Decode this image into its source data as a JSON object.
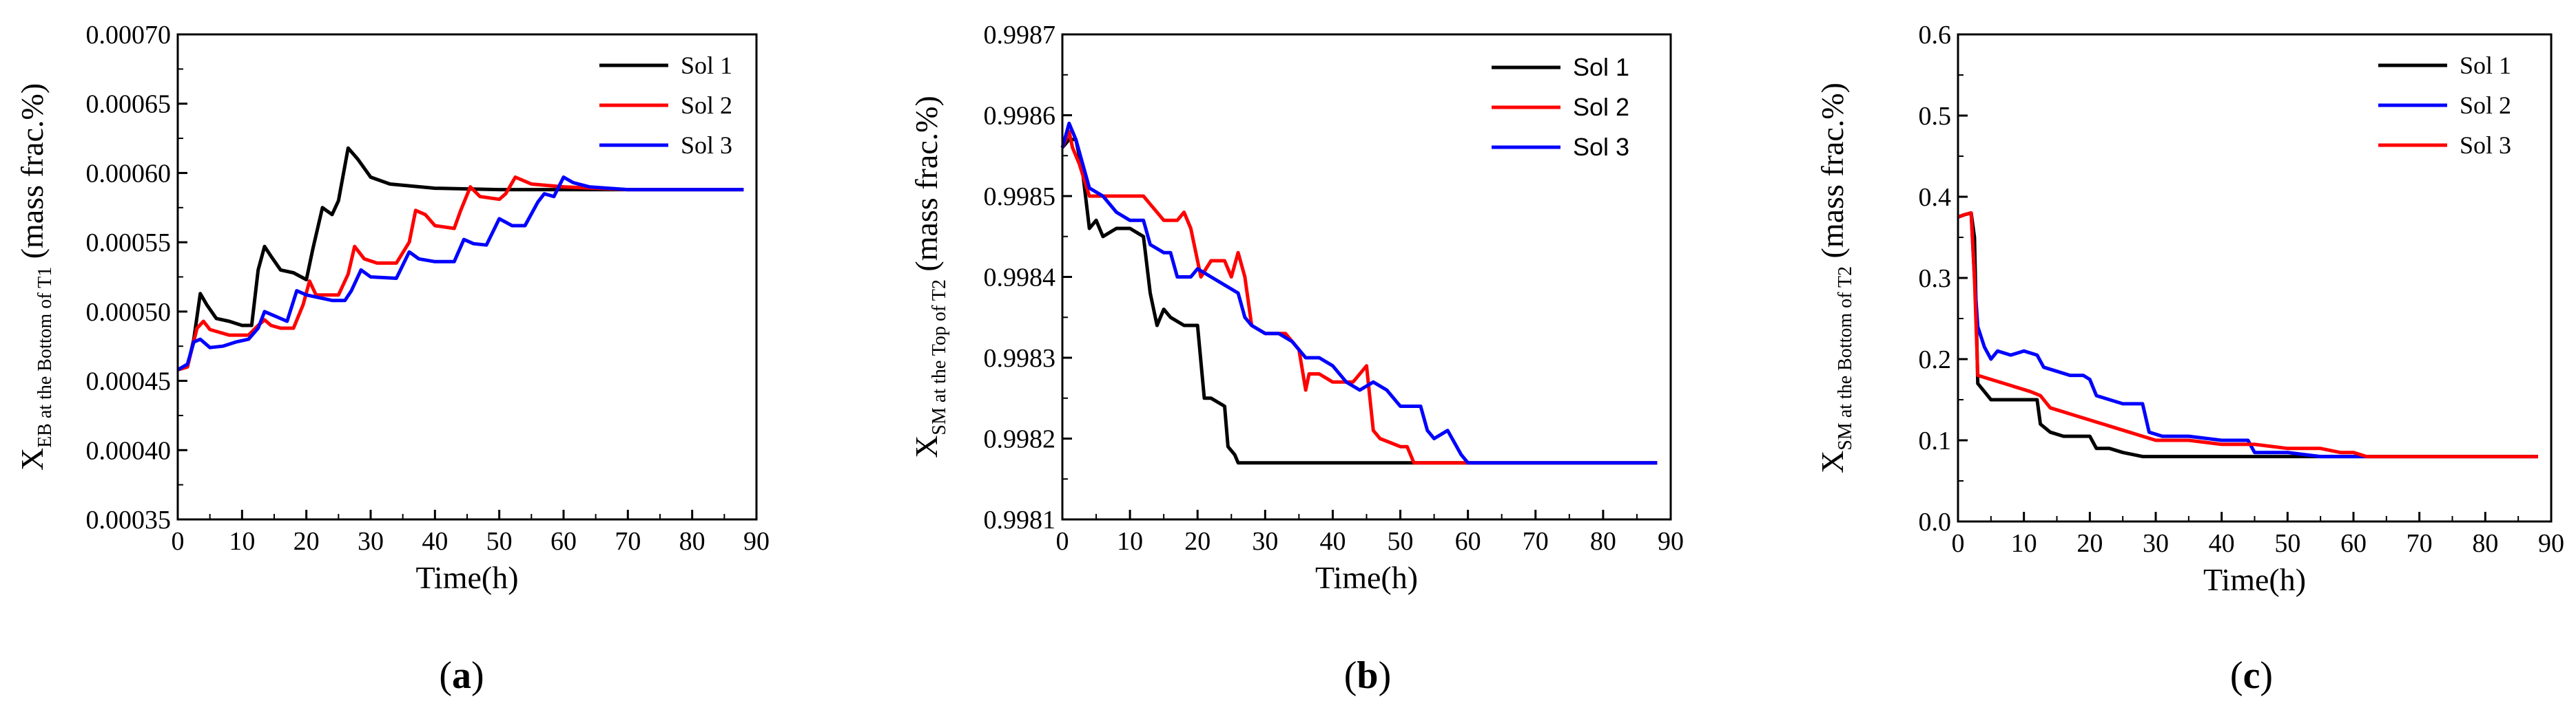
{
  "chart_data": [
    {
      "type": "line",
      "panel_label": "(a)",
      "panel_label_parts": [
        "(",
        "a",
        ")"
      ],
      "xlabel": "Time(h)",
      "ylabel_main": "X",
      "ylabel_sub": "EB at the Bottom of T1",
      "ylabel_suffix": " (mass frac.%)",
      "xlim": [
        0,
        90
      ],
      "ylim": [
        0.00035,
        0.0007
      ],
      "xticks": [
        0,
        10,
        20,
        30,
        40,
        50,
        60,
        70,
        80,
        90
      ],
      "xtick_labels": [
        "0",
        "10",
        "20",
        "30",
        "40",
        "50",
        "60",
        "70",
        "80",
        "90"
      ],
      "yticks": [
        0.00035,
        0.0004,
        0.00045,
        0.0005,
        0.00055,
        0.0006,
        0.00065,
        0.0007
      ],
      "ytick_labels": [
        "0.00035",
        "0.00040",
        "0.00045",
        "0.00050",
        "0.00055",
        "0.00060",
        "0.00065",
        "0.00070"
      ],
      "legend_position": "top-right",
      "legend_font": "serif",
      "series": [
        {
          "name": "Sol 1",
          "color": "#000000",
          "x": [
            0,
            1.5,
            2.5,
            3.5,
            4.5,
            6,
            8,
            10,
            11.5,
            12.5,
            13.5,
            14.5,
            16,
            18,
            20,
            21,
            22.5,
            24,
            25,
            26.5,
            28,
            30,
            33,
            40,
            50,
            60,
            70,
            80,
            88
          ],
          "y": [
            0.000458,
            0.00046,
            0.00048,
            0.000513,
            0.000505,
            0.000495,
            0.000493,
            0.00049,
            0.00049,
            0.00053,
            0.000547,
            0.00054,
            0.00053,
            0.000528,
            0.000523,
            0.000545,
            0.000575,
            0.00057,
            0.00058,
            0.000618,
            0.00061,
            0.000597,
            0.000592,
            0.000589,
            0.000588,
            0.000588,
            0.000588,
            0.000588,
            0.000588
          ]
        },
        {
          "name": "Sol 2",
          "color": "#ff0000",
          "x": [
            0,
            1.5,
            3,
            4,
            5,
            8,
            11,
            12.5,
            13.5,
            14.5,
            16,
            18,
            19.5,
            20.5,
            21.5,
            23,
            25,
            26.5,
            27.5,
            29,
            31,
            34,
            36,
            37,
            38.5,
            40,
            43,
            44,
            45.5,
            47,
            50,
            51,
            52.5,
            55,
            60,
            70,
            80,
            88
          ],
          "y": [
            0.000458,
            0.00046,
            0.000488,
            0.000493,
            0.000487,
            0.000483,
            0.000483,
            0.00049,
            0.000494,
            0.00049,
            0.000488,
            0.000488,
            0.000505,
            0.000522,
            0.000512,
            0.000512,
            0.000512,
            0.000527,
            0.000547,
            0.000538,
            0.000535,
            0.000535,
            0.00055,
            0.000573,
            0.00057,
            0.000562,
            0.00056,
            0.000573,
            0.00059,
            0.000583,
            0.000581,
            0.000585,
            0.000597,
            0.000592,
            0.00059,
            0.000588,
            0.000588,
            0.000588
          ]
        },
        {
          "name": "Sol 3",
          "color": "#0000ff",
          "x": [
            0,
            1.5,
            2.5,
            3.5,
            5,
            7,
            9,
            11,
            12.5,
            13.5,
            15,
            17,
            18.5,
            20,
            22,
            24,
            26,
            27,
            28.5,
            30,
            34,
            36,
            37.5,
            40,
            43,
            44.5,
            46,
            48,
            50,
            52,
            54,
            56,
            57,
            58.5,
            60,
            61.5,
            64,
            70,
            80,
            88
          ],
          "y": [
            0.000458,
            0.000462,
            0.000478,
            0.00048,
            0.000474,
            0.000475,
            0.000478,
            0.00048,
            0.000488,
            0.0005,
            0.000497,
            0.000493,
            0.000515,
            0.000512,
            0.00051,
            0.000508,
            0.000508,
            0.000515,
            0.00053,
            0.000525,
            0.000524,
            0.000543,
            0.000538,
            0.000536,
            0.000536,
            0.000552,
            0.000549,
            0.000548,
            0.000567,
            0.000562,
            0.000562,
            0.000579,
            0.000585,
            0.000583,
            0.000597,
            0.000593,
            0.00059,
            0.000588,
            0.000588,
            0.000588
          ]
        }
      ]
    },
    {
      "type": "line",
      "panel_label": "(b)",
      "panel_label_parts": [
        "(",
        "b",
        ")"
      ],
      "xlabel": "Time(h)",
      "ylabel_main": "X",
      "ylabel_sub": "SM at the Top of T2",
      "ylabel_suffix": " (mass frac.%)",
      "xlim": [
        0,
        90
      ],
      "ylim": [
        0.9981,
        0.9987
      ],
      "xticks": [
        0,
        10,
        20,
        30,
        40,
        50,
        60,
        70,
        80,
        90
      ],
      "xtick_labels": [
        "0",
        "10",
        "20",
        "30",
        "40",
        "50",
        "60",
        "70",
        "80",
        "90"
      ],
      "yticks": [
        0.9981,
        0.9982,
        0.9983,
        0.9984,
        0.9985,
        0.9986,
        0.9987
      ],
      "ytick_labels": [
        "0.9981",
        "0.9982",
        "0.9983",
        "0.9984",
        "0.9985",
        "0.9986",
        "0.9987"
      ],
      "legend_position": "top-right",
      "legend_font": "sans",
      "series": [
        {
          "name": "Sol 1",
          "color": "#000000",
          "x": [
            0,
            1,
            2,
            3,
            4,
            5,
            6,
            8,
            10,
            12,
            13,
            14,
            15,
            16,
            18,
            20,
            21,
            22,
            24,
            24.5,
            25.5,
            26,
            27,
            30,
            40,
            50,
            60,
            70,
            80,
            88
          ],
          "y": [
            0.99856,
            0.99857,
            0.99857,
            0.99853,
            0.99846,
            0.99847,
            0.99845,
            0.99846,
            0.99846,
            0.99845,
            0.99838,
            0.99834,
            0.99836,
            0.99835,
            0.99834,
            0.99834,
            0.99825,
            0.99825,
            0.99824,
            0.99819,
            0.99818,
            0.99817,
            0.99817,
            0.99817,
            0.99817,
            0.99817,
            0.99817,
            0.99817,
            0.99817,
            0.99817
          ]
        },
        {
          "name": "Sol 2",
          "color": "#ff0000",
          "x": [
            0,
            1,
            1.5,
            2.5,
            4,
            6,
            8,
            9,
            12,
            13,
            14,
            15,
            17,
            18,
            19,
            20,
            20.5,
            22,
            24,
            25,
            26,
            27,
            28,
            30,
            33,
            35,
            36,
            36.5,
            38,
            40,
            43,
            45,
            46,
            47,
            50,
            51,
            52,
            53,
            54,
            56,
            60,
            70,
            80,
            88
          ],
          "y": [
            0.99856,
            0.99858,
            0.99856,
            0.99854,
            0.9985,
            0.9985,
            0.9985,
            0.9985,
            0.9985,
            0.99849,
            0.99848,
            0.99847,
            0.99847,
            0.99848,
            0.99846,
            0.99842,
            0.9984,
            0.99842,
            0.99842,
            0.9984,
            0.99843,
            0.9984,
            0.99834,
            0.99833,
            0.99833,
            0.99831,
            0.99826,
            0.99828,
            0.99828,
            0.99827,
            0.99827,
            0.99829,
            0.99821,
            0.9982,
            0.99819,
            0.99819,
            0.99817,
            0.99817,
            0.99817,
            0.99817,
            0.99817,
            0.99817,
            0.99817,
            0.99817
          ]
        },
        {
          "name": "Sol 3",
          "color": "#0000ff",
          "x": [
            0,
            1,
            2,
            3,
            4,
            6,
            8,
            10,
            12,
            13,
            15,
            16,
            17,
            19,
            20,
            22,
            24,
            26,
            27,
            28,
            30,
            32,
            34,
            36,
            38,
            40,
            42,
            44,
            46,
            48,
            50,
            51,
            53,
            54,
            55,
            57,
            59,
            60,
            61,
            62,
            64,
            70,
            80,
            88
          ],
          "y": [
            0.99856,
            0.99859,
            0.99857,
            0.99854,
            0.99851,
            0.9985,
            0.99848,
            0.99847,
            0.99847,
            0.99844,
            0.99843,
            0.99843,
            0.9984,
            0.9984,
            0.99841,
            0.9984,
            0.99839,
            0.99838,
            0.99835,
            0.99834,
            0.99833,
            0.99833,
            0.99832,
            0.9983,
            0.9983,
            0.99829,
            0.99827,
            0.99826,
            0.99827,
            0.99826,
            0.99824,
            0.99824,
            0.99824,
            0.99821,
            0.9982,
            0.99821,
            0.99818,
            0.99817,
            0.99817,
            0.99817,
            0.99817,
            0.99817,
            0.99817,
            0.99817
          ]
        }
      ]
    },
    {
      "type": "line",
      "panel_label": "(c)",
      "panel_label_parts": [
        "(",
        "c",
        ")"
      ],
      "xlabel": "Time(h)",
      "ylabel_main": "X",
      "ylabel_sub": "SM at the Bottom of T2",
      "ylabel_suffix": " (mass frac.%)",
      "xlim": [
        0,
        90
      ],
      "ylim": [
        0.0,
        0.6
      ],
      "xticks": [
        0,
        10,
        20,
        30,
        40,
        50,
        60,
        70,
        80,
        90
      ],
      "xtick_labels": [
        "0",
        "10",
        "20",
        "30",
        "40",
        "50",
        "60",
        "70",
        "80",
        "90"
      ],
      "yticks": [
        0.0,
        0.1,
        0.2,
        0.3,
        0.4,
        0.5,
        0.6
      ],
      "ytick_labels": [
        "0.0",
        "0.1",
        "0.2",
        "0.3",
        "0.4",
        "0.5",
        "0.6"
      ],
      "legend_position": "top-right",
      "legend_font": "serif",
      "series": [
        {
          "name": "Sol 1",
          "color": "#000000",
          "x": [
            0,
            1,
            2,
            2.5,
            3,
            4,
            5,
            6,
            8,
            10,
            12,
            12.5,
            14,
            16,
            18,
            20,
            21,
            23,
            25,
            28,
            30,
            35,
            40,
            50,
            60,
            70,
            80,
            88
          ],
          "y": [
            0.375,
            0.378,
            0.38,
            0.35,
            0.17,
            0.16,
            0.15,
            0.15,
            0.15,
            0.15,
            0.15,
            0.12,
            0.11,
            0.105,
            0.105,
            0.105,
            0.09,
            0.09,
            0.085,
            0.08,
            0.08,
            0.08,
            0.08,
            0.08,
            0.08,
            0.08,
            0.08,
            0.08
          ]
        },
        {
          "name": "Sol 2",
          "color": "#0000ff",
          "x": [
            0,
            1,
            2,
            2.5,
            3,
            4,
            5,
            6,
            8,
            10,
            12,
            13,
            15,
            17,
            19,
            20,
            21,
            23,
            25,
            28,
            29,
            31,
            35,
            40,
            44,
            45,
            50,
            55,
            60,
            70,
            80,
            88
          ],
          "y": [
            0.375,
            0.378,
            0.38,
            0.3,
            0.24,
            0.215,
            0.2,
            0.21,
            0.205,
            0.21,
            0.205,
            0.19,
            0.185,
            0.18,
            0.18,
            0.175,
            0.155,
            0.15,
            0.145,
            0.145,
            0.11,
            0.105,
            0.105,
            0.1,
            0.1,
            0.085,
            0.085,
            0.08,
            0.08,
            0.08,
            0.08,
            0.08
          ]
        },
        {
          "name": "Sol 3",
          "color": "#ff0000",
          "x": [
            0,
            1,
            2,
            2.5,
            3,
            5,
            7,
            9,
            11,
            12.5,
            14,
            16,
            18,
            20,
            22,
            24,
            26,
            28,
            30,
            35,
            40,
            45,
            50,
            55,
            58,
            60,
            62,
            70,
            80,
            88
          ],
          "y": [
            0.375,
            0.378,
            0.38,
            0.3,
            0.18,
            0.175,
            0.17,
            0.165,
            0.16,
            0.155,
            0.14,
            0.135,
            0.13,
            0.125,
            0.12,
            0.115,
            0.11,
            0.105,
            0.1,
            0.1,
            0.095,
            0.095,
            0.09,
            0.09,
            0.085,
            0.085,
            0.08,
            0.08,
            0.08,
            0.08
          ]
        }
      ]
    }
  ]
}
